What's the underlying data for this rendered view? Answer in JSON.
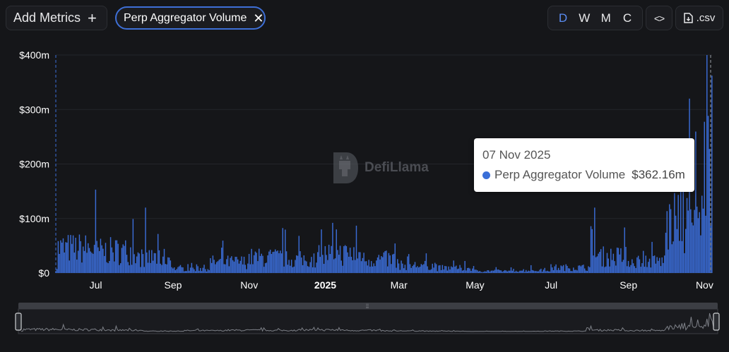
{
  "toolbar": {
    "add_metrics_label": "Add Metrics",
    "add_icon": "plus-icon",
    "metric_chip_label": "Perp Aggregator Volume",
    "remove_icon": "close-icon",
    "periods": [
      "D",
      "W",
      "M",
      "C"
    ],
    "active_period": "D",
    "embed_label": "<>",
    "csv_label": ".csv",
    "csv_icon": "file-download-icon"
  },
  "watermark": {
    "text": "DefiLlama",
    "icon": "llama-logo-icon"
  },
  "tooltip": {
    "date": "07 Nov 2025",
    "series": "Perp Aggregator Volume",
    "value": "$362.16m"
  },
  "colors": {
    "bar": "#3a6bd4",
    "accent": "#5a8cf2",
    "background": "#151619"
  },
  "chart_data": {
    "type": "bar",
    "title": "",
    "xlabel": "",
    "ylabel": "",
    "ylim": [
      0,
      400
    ],
    "y_unit": "$m",
    "y_ticks": [
      "$0",
      "$100m",
      "$200m",
      "$300m",
      "$400m"
    ],
    "x_ticks": [
      "Jul",
      "Sep",
      "Nov",
      "2025",
      "Mar",
      "May",
      "Jul",
      "Sep",
      "Nov"
    ],
    "x_range": [
      "2024-05-30",
      "2025-11-07"
    ],
    "grid": true,
    "series": [
      {
        "name": "Perp Aggregator Volume",
        "resolution": "monthly-average-of-daily",
        "x": [
          "2024-06",
          "2024-07",
          "2024-08",
          "2024-09",
          "2024-10",
          "2024-11",
          "2024-12",
          "2025-01",
          "2025-02",
          "2025-03",
          "2025-04",
          "2025-05",
          "2025-06",
          "2025-07",
          "2025-08",
          "2025-09",
          "2025-10",
          "2025-11"
        ],
        "values": [
          45,
          40,
          28,
          8,
          20,
          28,
          25,
          35,
          25,
          14,
          9,
          4,
          5,
          10,
          30,
          22,
          90,
          220
        ]
      }
    ],
    "peaks": [
      {
        "x": "2024-07-01",
        "value": 153
      },
      {
        "x": "2024-08-10",
        "value": 120
      },
      {
        "x": "2024-12-29",
        "value": 80
      },
      {
        "x": "2025-01-10",
        "value": 80
      },
      {
        "x": "2025-08-05",
        "value": 120
      },
      {
        "x": "2025-10-20",
        "value": 320
      },
      {
        "x": "2025-11-07",
        "value": 362.16
      }
    ]
  }
}
